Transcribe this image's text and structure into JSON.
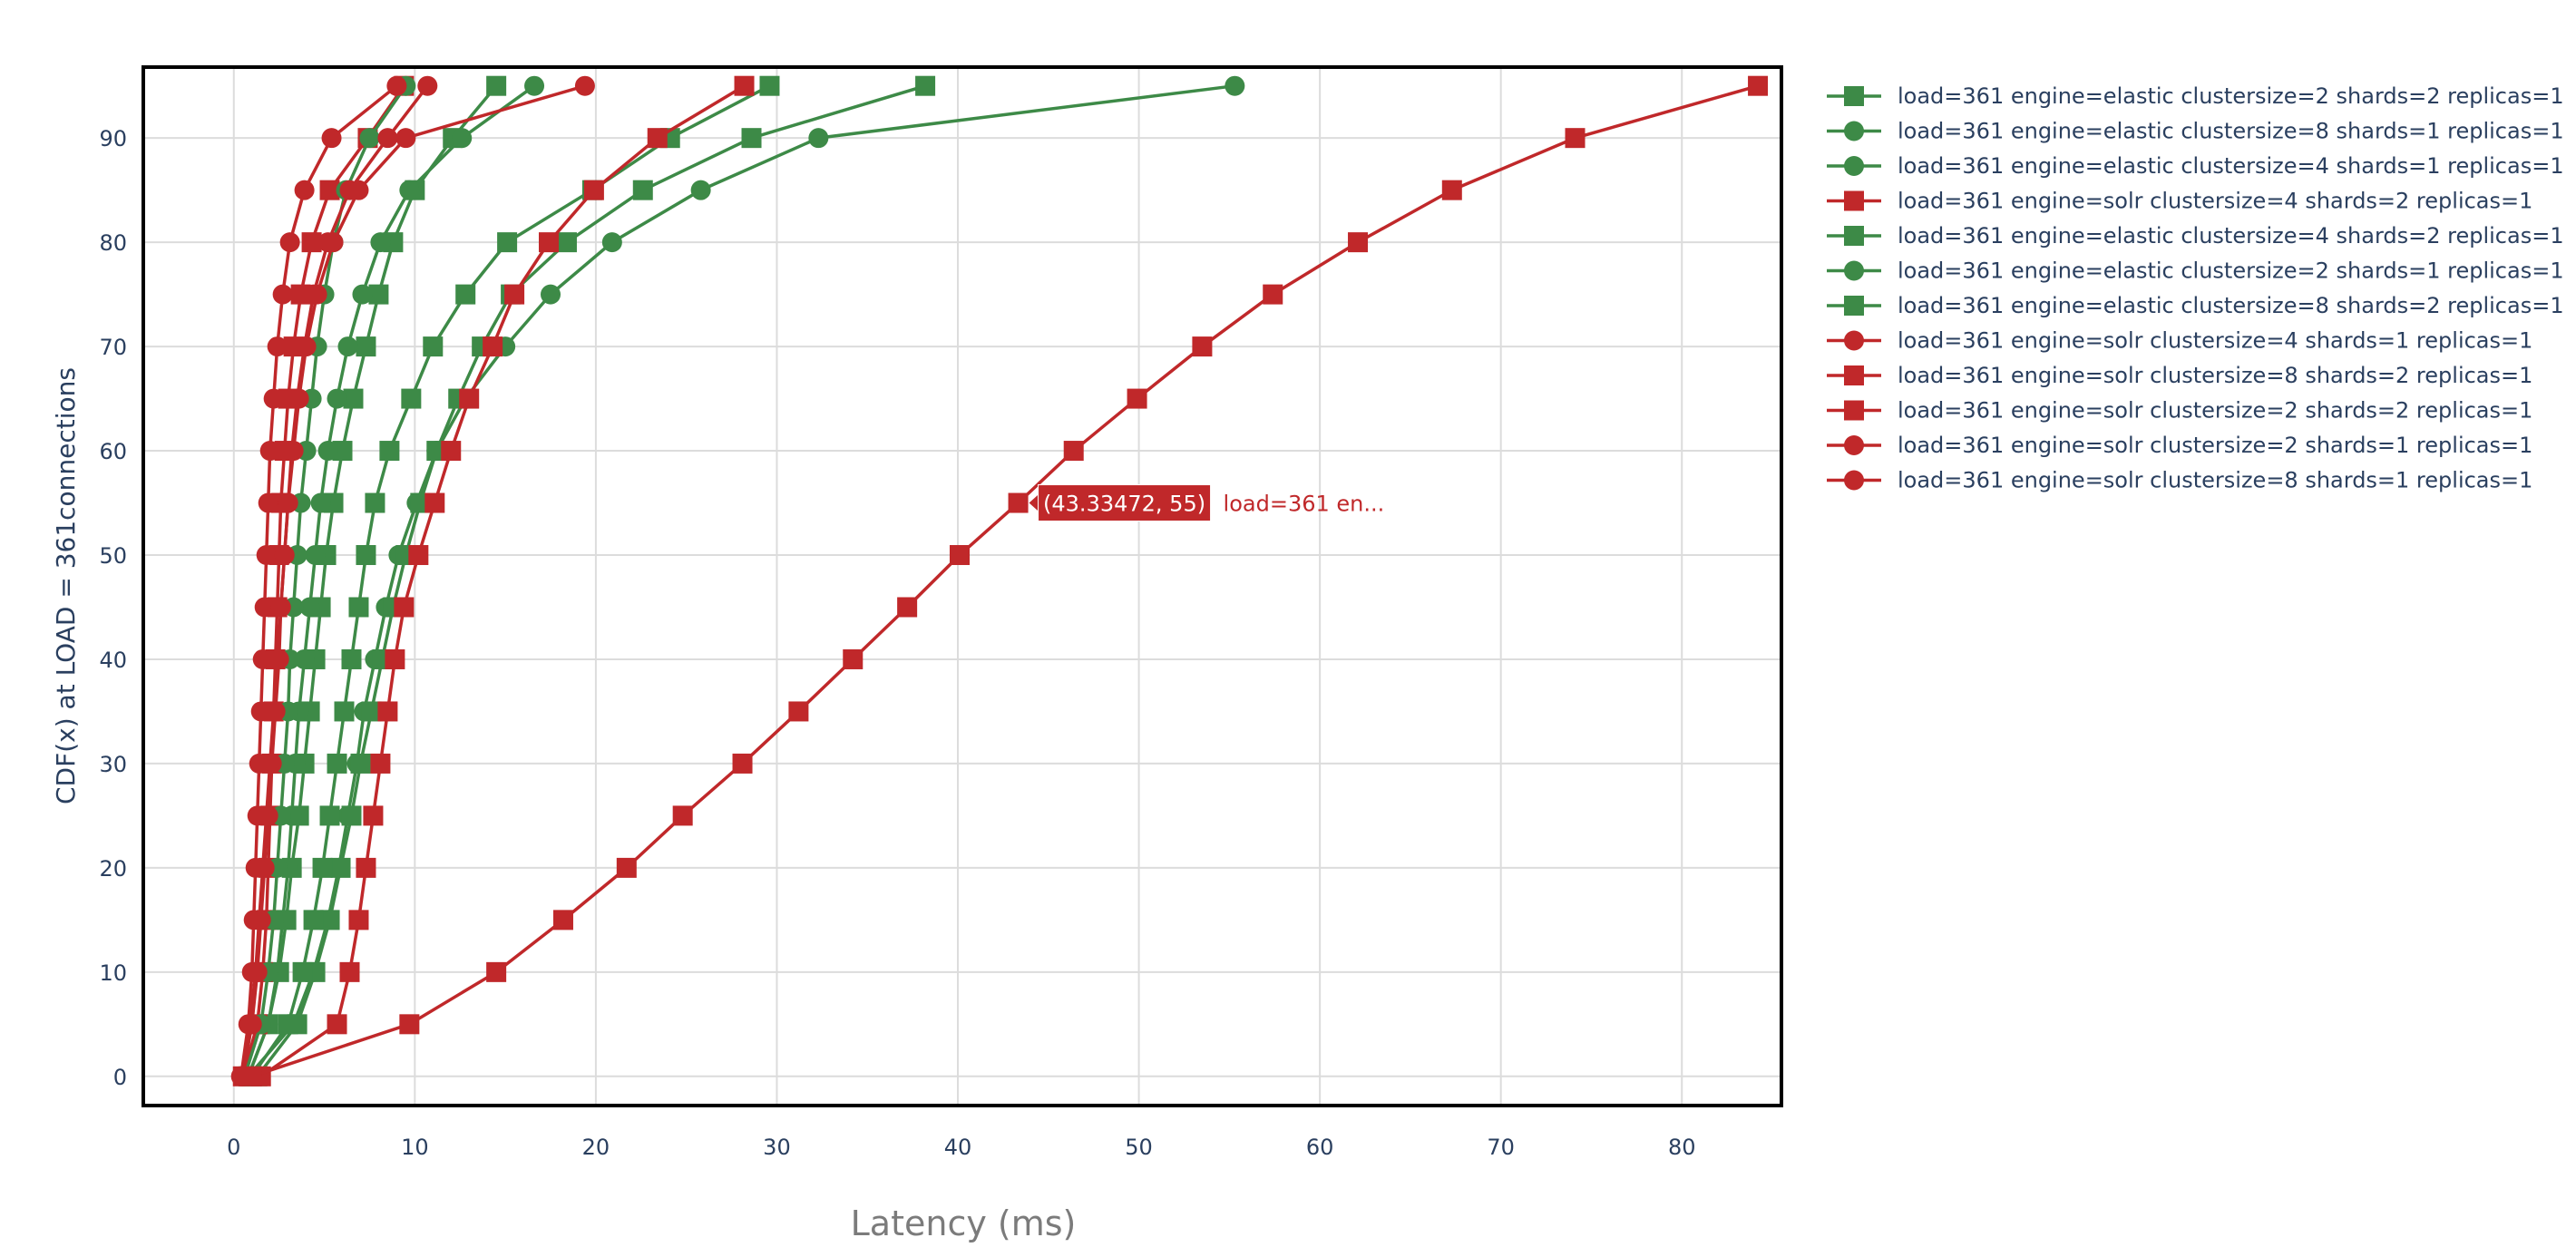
{
  "chart_data": {
    "type": "line",
    "title": "",
    "xlabel": "Latency (ms)",
    "ylabel": "CDF(x) at LOAD = 361connections",
    "xlim": [
      -5,
      85.5
    ],
    "ylim": [
      -2.8,
      96.8
    ],
    "xticks": [
      0,
      10,
      20,
      30,
      40,
      50,
      60,
      70,
      80
    ],
    "yticks": [
      0,
      10,
      20,
      30,
      40,
      50,
      60,
      70,
      80,
      90
    ],
    "y_levels": [
      0,
      5,
      10,
      15,
      20,
      25,
      30,
      35,
      40,
      45,
      50,
      55,
      60,
      65,
      70,
      75,
      80,
      85,
      90,
      95
    ],
    "grid": true,
    "legend_position": "right",
    "colors": {
      "elastic": "#3d8a47",
      "solr": "#c0282a"
    },
    "series": [
      {
        "name": "load=361 engine=elastic clustersize=2 shards=2 replicas=1",
        "engine": "elastic",
        "marker": "square",
        "x": [
          0.8,
          1.9,
          2.5,
          2.9,
          3.2,
          3.6,
          3.9,
          4.2,
          4.5,
          4.8,
          5.1,
          5.5,
          6.0,
          6.6,
          7.3,
          8.0,
          8.8,
          10.0,
          12.1,
          14.5
        ]
      },
      {
        "name": "load=361 engine=elastic clustersize=8 shards=1 replicas=1",
        "engine": "elastic",
        "marker": "circle",
        "x": [
          0.8,
          1.9,
          2.4,
          2.7,
          3.0,
          3.2,
          3.4,
          3.6,
          3.9,
          4.2,
          4.5,
          4.8,
          5.2,
          5.7,
          6.3,
          7.1,
          8.1,
          9.7,
          12.6,
          16.6
        ]
      },
      {
        "name": "load=361 engine=elastic clustersize=4 shards=1 replicas=1",
        "engine": "elastic",
        "marker": "circle",
        "x": [
          0.8,
          3.3,
          4.4,
          5.2,
          5.8,
          6.3,
          6.8,
          7.2,
          7.8,
          8.4,
          9.1,
          10.1,
          11.2,
          12.8,
          15.0,
          17.5,
          20.9,
          25.8,
          32.3,
          55.3
        ]
      },
      {
        "name": "load=361 engine=solr clustersize=4 shards=2 replicas=1",
        "engine": "solr",
        "marker": "square",
        "x": [
          0.5,
          1.3,
          1.6,
          1.8,
          1.9,
          2.0,
          2.1,
          2.2,
          2.3,
          2.4,
          2.5,
          2.6,
          2.8,
          3.0,
          3.3,
          3.7,
          4.3,
          5.3,
          7.4,
          9.4
        ]
      },
      {
        "name": "load=361 engine=elastic clustersize=4 shards=2 replicas=1",
        "engine": "elastic",
        "marker": "square",
        "x": [
          1.3,
          3.5,
          4.5,
          5.3,
          5.9,
          6.5,
          7.0,
          7.6,
          8.2,
          8.8,
          9.5,
          10.3,
          11.2,
          12.4,
          13.7,
          15.3,
          18.4,
          22.6,
          28.6,
          38.2
        ]
      },
      {
        "name": "load=361 engine=elastic clustersize=2 shards=1 replicas=1",
        "engine": "elastic",
        "marker": "circle",
        "x": [
          0.6,
          1.5,
          1.9,
          2.2,
          2.4,
          2.6,
          2.8,
          3.0,
          3.1,
          3.3,
          3.5,
          3.7,
          4.0,
          4.3,
          4.6,
          5.0,
          5.5,
          6.2,
          7.5,
          9.5
        ]
      },
      {
        "name": "load=361 engine=elastic clustersize=8 shards=2 replicas=1",
        "engine": "elastic",
        "marker": "square",
        "x": [
          1.0,
          3.0,
          3.8,
          4.4,
          4.9,
          5.3,
          5.7,
          6.1,
          6.5,
          6.9,
          7.3,
          7.8,
          8.6,
          9.8,
          11.0,
          12.8,
          15.1,
          19.8,
          24.1,
          29.6
        ]
      },
      {
        "name": "load=361 engine=solr clustersize=4 shards=1 replicas=1",
        "engine": "solr",
        "marker": "circle",
        "x": [
          0.4,
          0.8,
          1.0,
          1.1,
          1.2,
          1.3,
          1.4,
          1.5,
          1.6,
          1.7,
          1.8,
          1.9,
          2.0,
          2.2,
          2.4,
          2.7,
          3.1,
          3.9,
          5.4,
          9.0
        ]
      },
      {
        "name": "load=361 engine=solr clustersize=8 shards=2 replicas=1",
        "engine": "solr",
        "marker": "square",
        "x": [
          1.5,
          5.7,
          6.4,
          6.9,
          7.3,
          7.7,
          8.1,
          8.5,
          8.9,
          9.4,
          10.2,
          11.1,
          12.0,
          13.0,
          14.3,
          15.5,
          17.4,
          19.9,
          23.4,
          28.2
        ]
      },
      {
        "name": "load=361 engine=solr clustersize=2 shards=2 replicas=1",
        "engine": "solr",
        "marker": "square",
        "x": [
          1.0,
          9.7,
          14.5,
          18.2,
          21.7,
          24.8,
          28.1,
          31.2,
          34.2,
          37.2,
          40.1,
          43.33472,
          46.4,
          49.9,
          53.5,
          57.4,
          62.1,
          67.3,
          74.1,
          84.2
        ]
      },
      {
        "name": "load=361 engine=solr clustersize=2 shards=1 replicas=1",
        "engine": "solr",
        "marker": "circle",
        "x": [
          0.5,
          1.0,
          1.3,
          1.5,
          1.7,
          1.9,
          2.1,
          2.3,
          2.5,
          2.6,
          2.8,
          3.0,
          3.2,
          3.5,
          3.9,
          4.4,
          5.2,
          6.4,
          8.5,
          10.7
        ]
      },
      {
        "name": "load=361 engine=solr clustersize=8 shards=1 replicas=1",
        "engine": "solr",
        "marker": "circle",
        "x": [
          0.4,
          0.9,
          1.2,
          1.4,
          1.6,
          1.8,
          2.0,
          2.2,
          2.4,
          2.6,
          2.8,
          3.0,
          3.3,
          3.6,
          4.0,
          4.6,
          5.5,
          6.9,
          9.5,
          19.4
        ]
      }
    ],
    "hover_label": {
      "series_index": 9,
      "point_index": 11,
      "text": "(43.33472, 55)",
      "name_text": "load=361 en..."
    }
  }
}
